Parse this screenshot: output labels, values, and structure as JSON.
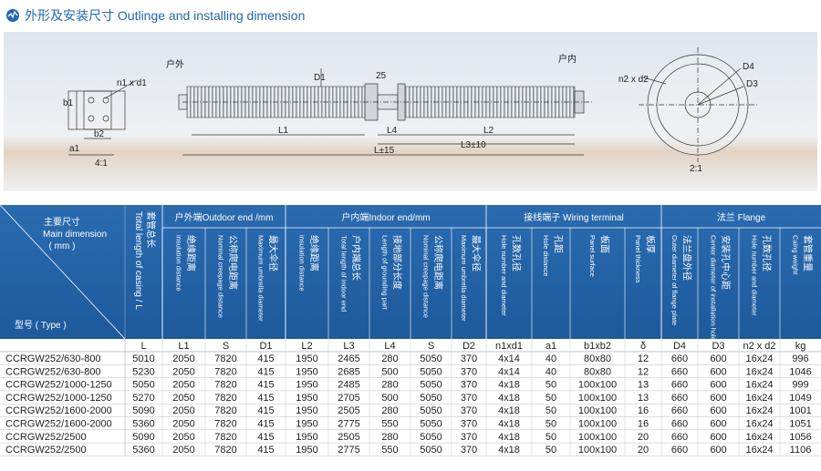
{
  "header": {
    "title": "外形及安装尺寸 Outlinge and installing dimension"
  },
  "drawing": {
    "labels": [
      "户外",
      "户内",
      "D1",
      "25",
      "n1 x d1",
      "b1",
      "b2",
      "a1",
      "L1",
      "L4",
      "L2",
      "L3±10",
      "L±15",
      "4:1",
      "n2 x d2",
      "D4",
      "D3",
      "2:1"
    ]
  },
  "table": {
    "corner": {
      "zh": "主要尺寸",
      "en": "Main dimension",
      "unit": "( mm )",
      "type": "型号 ( Type )"
    },
    "groups": [
      "户外端Outdoor end /mm",
      "户内端Indoor end/mm",
      "接线端子 Wiring terminal",
      "法兰 Flange"
    ],
    "columns": [
      {
        "en": "Total length of casing / L",
        "zh": "套管总长"
      },
      {
        "en": "insulation distance",
        "zh": "绝缘距离"
      },
      {
        "en": "Nominal creepage distance",
        "zh": "公称爬电距离"
      },
      {
        "en": "Maximum umbrella diameter",
        "zh": "最大伞径"
      },
      {
        "en": "insulation distance",
        "zh": "绝缘距离"
      },
      {
        "en": "Total length of indoor end",
        "zh": "户内端总长"
      },
      {
        "en": "Length of grounding part",
        "zh": "接地部分长度"
      },
      {
        "en": "Nominal creepage distance",
        "zh": "公称爬电距离"
      },
      {
        "en": "Maximum umbrella diameter",
        "zh": "最大伞径"
      },
      {
        "en": "Hole number and diameter",
        "zh": "孔数孔径"
      },
      {
        "en": "Hole distance",
        "zh": "孔距"
      },
      {
        "en": "Panel surface",
        "zh": "板面"
      },
      {
        "en": "Panel thickness",
        "zh": "板厚"
      },
      {
        "en": "Outer diameter of flange plate",
        "zh": "法兰盘外径"
      },
      {
        "en": "Center diameter of installation hole",
        "zh": "安装孔中心距"
      },
      {
        "en": "Hole number and diameter",
        "zh": "孔数孔径"
      },
      {
        "en": "Caing weight",
        "zh": "套管重量"
      }
    ],
    "symbols": [
      "L",
      "L1",
      "S",
      "D1",
      "L2",
      "L3",
      "L4",
      "S",
      "D2",
      "n1xd1",
      "a1",
      "b1xb2",
      "δ",
      "D4",
      "D3",
      "n2 x d2",
      "kg"
    ],
    "rows": [
      [
        "CCRGW252/630-800",
        5010,
        2050,
        7820,
        415,
        1950,
        2465,
        280,
        5050,
        370,
        "4x14",
        40,
        "80x80",
        12,
        660,
        600,
        "16x24",
        996
      ],
      [
        "CCRGW252/630-800",
        5230,
        2050,
        7820,
        415,
        1950,
        2685,
        500,
        5050,
        370,
        "4x14",
        40,
        "80x80",
        12,
        660,
        600,
        "16x24",
        1046
      ],
      [
        "CCRGW252/1000-1250",
        5050,
        2050,
        7820,
        415,
        1950,
        2485,
        280,
        5050,
        370,
        "4x18",
        50,
        "100x100",
        13,
        660,
        600,
        "16x24",
        999
      ],
      [
        "CCRGW252/1000-1250",
        5270,
        2050,
        7820,
        415,
        1950,
        2705,
        500,
        5050,
        370,
        "4x18",
        50,
        "100x100",
        13,
        660,
        600,
        "16x24",
        1049
      ],
      [
        "CCRGW252/1600-2000",
        5090,
        2050,
        7820,
        415,
        1950,
        2505,
        280,
        5050,
        370,
        "4x18",
        50,
        "100x100",
        16,
        660,
        600,
        "16x24",
        1001
      ],
      [
        "CCRGW252/1600-2000",
        5360,
        2050,
        7820,
        415,
        1950,
        2775,
        550,
        5050,
        370,
        "4x18",
        50,
        "100x100",
        16,
        660,
        600,
        "16x24",
        1051
      ],
      [
        "CCRGW252/2500",
        5090,
        2050,
        7820,
        415,
        1950,
        2505,
        280,
        5050,
        370,
        "4x18",
        50,
        "100x100",
        20,
        660,
        600,
        "16x24",
        1056
      ],
      [
        "CCRGW252/2500",
        5360,
        2050,
        7820,
        415,
        1950,
        2775,
        550,
        5050,
        370,
        "4x18",
        50,
        "100x100",
        20,
        660,
        600,
        "16x24",
        1106
      ]
    ]
  }
}
